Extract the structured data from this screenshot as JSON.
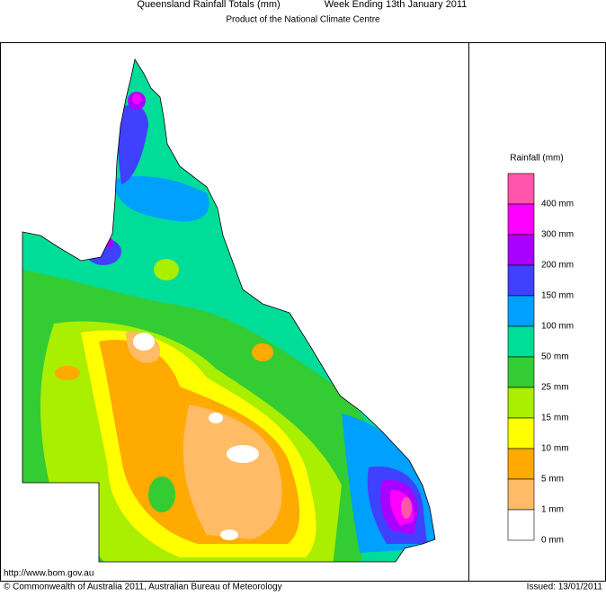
{
  "header": {
    "title": "Queensland Rainfall Totals (mm)",
    "week": "Week Ending 13th January 2011",
    "subtitle": "Product of the National Climate Centre"
  },
  "legend": {
    "title": "Rainfall (mm)",
    "items": [
      {
        "label": "400 mm",
        "color": "#ff55aa"
      },
      {
        "label": "300 mm",
        "color": "#ff00ff"
      },
      {
        "label": "200 mm",
        "color": "#aa00ff"
      },
      {
        "label": "150 mm",
        "color": "#4040ff"
      },
      {
        "label": "100 mm",
        "color": "#00a0ff"
      },
      {
        "label": "50 mm",
        "color": "#00dd99"
      },
      {
        "label": "25 mm",
        "color": "#33cc33"
      },
      {
        "label": "15 mm",
        "color": "#aaee00"
      },
      {
        "label": "10 mm",
        "color": "#ffff00"
      },
      {
        "label": "5 mm",
        "color": "#ffaa00"
      },
      {
        "label": "1 mm",
        "color": "#ffbb66"
      },
      {
        "label": "0 mm",
        "color": "#ffffff"
      }
    ]
  },
  "footer": {
    "url": "http://www.bom.gov.au",
    "copyright": "© Commonwealth of Australia 2011, Australian Bureau of Meteorology",
    "issued": "Issued: 13/01/2011"
  }
}
